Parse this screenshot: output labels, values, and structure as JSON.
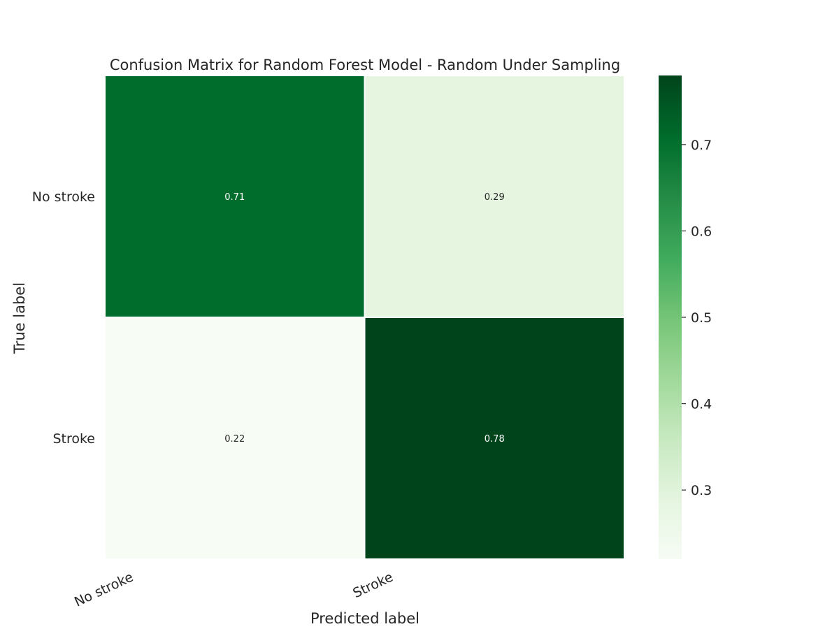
{
  "chart_data": {
    "type": "heatmap",
    "title": "Confusion Matrix for Random Forest Model - Random Under Sampling",
    "xlabel": "Predicted label",
    "ylabel": "True label",
    "x_categories": [
      "No stroke",
      "Stroke"
    ],
    "y_categories": [
      "No stroke",
      "Stroke"
    ],
    "values": [
      [
        0.71,
        0.29
      ],
      [
        0.22,
        0.78
      ]
    ],
    "value_labels": [
      [
        "0.71",
        "0.29"
      ],
      [
        "0.22",
        "0.78"
      ]
    ],
    "colormap": "Greens",
    "colorbar": {
      "range": [
        0.22,
        0.78
      ],
      "ticks": [
        0.3,
        0.4,
        0.5,
        0.6,
        0.7
      ],
      "tick_labels": [
        "0.3",
        "0.4",
        "0.5",
        "0.6",
        "0.7"
      ]
    },
    "grid": false
  }
}
